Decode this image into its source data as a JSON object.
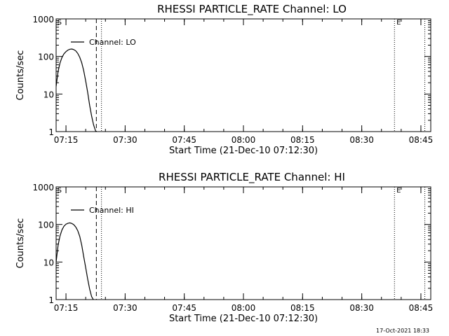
{
  "footer": {
    "timestamp": "17-Oct-2021 18:33"
  },
  "chart_data": [
    {
      "type": "line",
      "title": "RHESSI PARTICLE_RATE Channel: LO",
      "xlabel": "Start Time (21-Dec-10 07:12:30)",
      "ylabel": "Counts/sec",
      "yscale": "log",
      "ylim": [
        1,
        1000
      ],
      "xlim_minutes": [
        0,
        95
      ],
      "x_ticks": [
        {
          "label": "07:15",
          "value": 2.5
        },
        {
          "label": "07:30",
          "value": 17.5
        },
        {
          "label": "07:45",
          "value": 32.5
        },
        {
          "label": "08:00",
          "value": 47.5
        },
        {
          "label": "08:15",
          "value": 62.5
        },
        {
          "label": "08:30",
          "value": 77.5
        },
        {
          "label": "08:45",
          "value": 92.5
        }
      ],
      "y_ticks": [
        {
          "label": "1",
          "value": 1
        },
        {
          "label": "10",
          "value": 10
        },
        {
          "label": "100",
          "value": 100
        },
        {
          "label": "1000",
          "value": 1000
        }
      ],
      "series": [
        {
          "name": "Channel: LO",
          "x": [
            0,
            0.5,
            1,
            1.5,
            2,
            2.5,
            3,
            3.5,
            4,
            4.5,
            5,
            5.5,
            6,
            6.5,
            7,
            7.5,
            8,
            8.5,
            9,
            9.5,
            10,
            10.3
          ],
          "y": [
            16,
            40,
            68,
            95,
            118,
            135,
            148,
            156,
            158,
            152,
            140,
            120,
            95,
            68,
            42,
            22,
            11,
            5,
            2.6,
            1.5,
            1.05,
            0.9
          ]
        }
      ],
      "vlines": [
        {
          "x": 10.2,
          "style": "dashed"
        },
        {
          "x": 11.5,
          "style": "dotted"
        },
        {
          "x": 85.8,
          "style": "dotted"
        },
        {
          "x": 93.5,
          "style": "dotted"
        }
      ],
      "markers": [
        {
          "label": "S",
          "x": 0.3
        },
        {
          "label": "E",
          "x": 86.3
        }
      ],
      "legend": "top-left"
    },
    {
      "type": "line",
      "title": "RHESSI PARTICLE_RATE Channel: HI",
      "xlabel": "Start Time (21-Dec-10 07:12:30)",
      "ylabel": "Counts/sec",
      "yscale": "log",
      "ylim": [
        1,
        1000
      ],
      "xlim_minutes": [
        0,
        95
      ],
      "x_ticks": [
        {
          "label": "07:15",
          "value": 2.5
        },
        {
          "label": "07:30",
          "value": 17.5
        },
        {
          "label": "07:45",
          "value": 32.5
        },
        {
          "label": "08:00",
          "value": 47.5
        },
        {
          "label": "08:15",
          "value": 62.5
        },
        {
          "label": "08:30",
          "value": 77.5
        },
        {
          "label": "08:45",
          "value": 92.5
        }
      ],
      "y_ticks": [
        {
          "label": "1",
          "value": 1
        },
        {
          "label": "10",
          "value": 10
        },
        {
          "label": "100",
          "value": 100
        },
        {
          "label": "1000",
          "value": 1000
        }
      ],
      "series": [
        {
          "name": "Channel: HI",
          "x": [
            0,
            0.5,
            1,
            1.5,
            2,
            2.5,
            3,
            3.5,
            4,
            4.5,
            5,
            5.5,
            6,
            6.5,
            7,
            7.5,
            8,
            8.5,
            9,
            9.5,
            9.8
          ],
          "y": [
            10,
            28,
            50,
            72,
            90,
            102,
            108,
            110,
            106,
            98,
            85,
            68,
            48,
            28,
            14,
            7,
            3.5,
            1.9,
            1.2,
            0.98,
            0.9
          ]
        }
      ],
      "vlines": [
        {
          "x": 10.2,
          "style": "dashed"
        },
        {
          "x": 11.5,
          "style": "dotted"
        },
        {
          "x": 85.8,
          "style": "dotted"
        },
        {
          "x": 93.5,
          "style": "dotted"
        }
      ],
      "markers": [
        {
          "label": "S",
          "x": 0.3
        },
        {
          "label": "E",
          "x": 86.3
        }
      ],
      "legend": "top-left"
    }
  ]
}
